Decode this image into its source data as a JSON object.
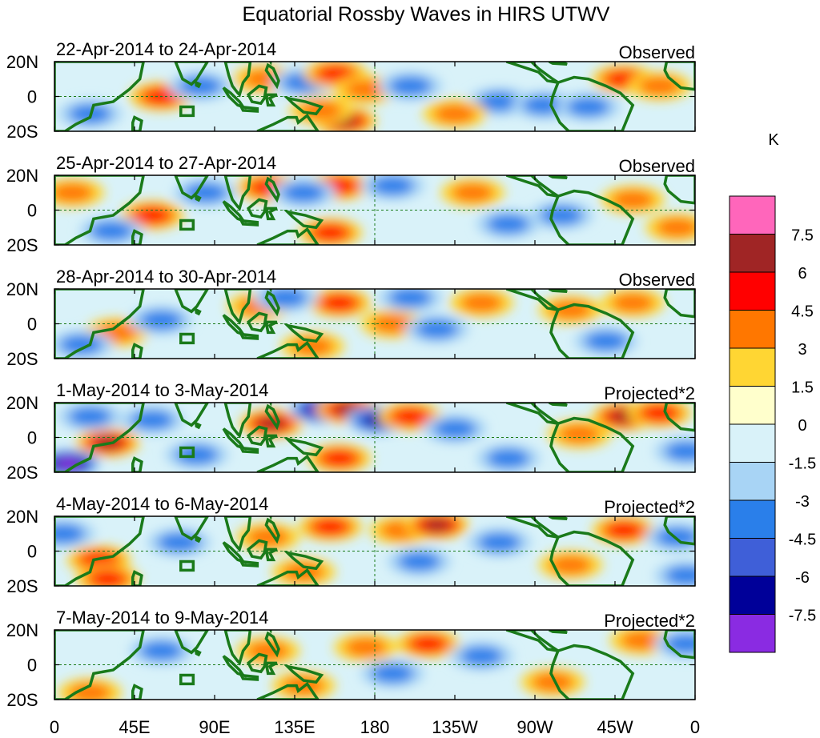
{
  "chart_data": {
    "type": "heatmap",
    "title": "Equatorial Rossby Waves in HIRS UTWV",
    "units": "K",
    "x_ticks": [
      "0",
      "45E",
      "90E",
      "135E",
      "180",
      "135W",
      "90W",
      "45W",
      "0"
    ],
    "y_ticks": [
      "20N",
      "0",
      "20S"
    ],
    "ylim": [
      -20,
      20
    ],
    "xlim": [
      0,
      360
    ],
    "colorbar": {
      "label": "K",
      "levels": [
        "7.5",
        "6",
        "4.5",
        "3",
        "1.5",
        "0",
        "-1.5",
        "-3",
        "-4.5",
        "-6",
        "-7.5"
      ],
      "colors": [
        "#ff66bb",
        "#a02525",
        "#ff0000",
        "#ff7700",
        "#ffd633",
        "#ffffcc",
        "#d9f2f9",
        "#a8d4f5",
        "#2a7fea",
        "#3f5fd8",
        "#000099",
        "#8a2be2"
      ]
    },
    "panels": [
      {
        "date_range": "22-Apr-2014 to 24-Apr-2014",
        "label": "Observed",
        "features": [
          {
            "lon": 60,
            "lat": 0,
            "value": 4.5
          },
          {
            "lon": 82,
            "lat": 6,
            "value": -2
          },
          {
            "lon": 118,
            "lat": 10,
            "value": 2
          },
          {
            "lon": 140,
            "lat": 8,
            "value": -2
          },
          {
            "lon": 158,
            "lat": 13,
            "value": 4
          },
          {
            "lon": 175,
            "lat": 4,
            "value": 2
          },
          {
            "lon": 163,
            "lat": -14,
            "value": 5
          },
          {
            "lon": 150,
            "lat": -8,
            "value": 2
          },
          {
            "lon": 200,
            "lat": 6,
            "value": -2
          },
          {
            "lon": 250,
            "lat": -3,
            "value": -2
          },
          {
            "lon": 275,
            "lat": -5,
            "value": -3
          },
          {
            "lon": 300,
            "lat": -6,
            "value": -2
          },
          {
            "lon": 320,
            "lat": 10,
            "value": 4
          },
          {
            "lon": 340,
            "lat": 6,
            "value": 2
          },
          {
            "lon": 20,
            "lat": -10,
            "value": -2
          },
          {
            "lon": 225,
            "lat": -10,
            "value": 2
          }
        ]
      },
      {
        "date_range": "25-Apr-2014 to 27-Apr-2014",
        "label": "Observed",
        "features": [
          {
            "lon": 55,
            "lat": -3,
            "value": 4
          },
          {
            "lon": 32,
            "lat": -12,
            "value": -3
          },
          {
            "lon": 85,
            "lat": 10,
            "value": -2
          },
          {
            "lon": 120,
            "lat": 13,
            "value": 3.5
          },
          {
            "lon": 160,
            "lat": 14,
            "value": 3.5
          },
          {
            "lon": 140,
            "lat": 10,
            "value": -2
          },
          {
            "lon": 155,
            "lat": -13,
            "value": 4.5
          },
          {
            "lon": 190,
            "lat": 14,
            "value": -2
          },
          {
            "lon": 235,
            "lat": 10,
            "value": 2
          },
          {
            "lon": 255,
            "lat": -8,
            "value": -2
          },
          {
            "lon": 285,
            "lat": -3,
            "value": -2
          },
          {
            "lon": 325,
            "lat": 6,
            "value": 2.5
          },
          {
            "lon": 350,
            "lat": -10,
            "value": 2
          },
          {
            "lon": 10,
            "lat": 10,
            "value": 2
          }
        ]
      },
      {
        "date_range": "28-Apr-2014 to 30-Apr-2014",
        "label": "Observed",
        "features": [
          {
            "lon": 35,
            "lat": -5,
            "value": 3
          },
          {
            "lon": 60,
            "lat": 2,
            "value": -2
          },
          {
            "lon": 115,
            "lat": 10,
            "value": 3
          },
          {
            "lon": 160,
            "lat": 12,
            "value": 4
          },
          {
            "lon": 145,
            "lat": -13,
            "value": 3
          },
          {
            "lon": 130,
            "lat": 15,
            "value": -3
          },
          {
            "lon": 190,
            "lat": 0,
            "value": 2
          },
          {
            "lon": 215,
            "lat": -3,
            "value": -2
          },
          {
            "lon": 200,
            "lat": 15,
            "value": -2
          },
          {
            "lon": 240,
            "lat": 12,
            "value": 2
          },
          {
            "lon": 290,
            "lat": 8,
            "value": 2
          },
          {
            "lon": 325,
            "lat": 12,
            "value": 3
          },
          {
            "lon": 310,
            "lat": -10,
            "value": -2
          },
          {
            "lon": 15,
            "lat": -12,
            "value": -2
          }
        ]
      },
      {
        "date_range": "1-May-2014 to 3-May-2014",
        "label": "Projected*2",
        "features": [
          {
            "lon": 30,
            "lat": -3,
            "value": 5
          },
          {
            "lon": 8,
            "lat": -15,
            "value": -7
          },
          {
            "lon": 55,
            "lat": 10,
            "value": -3
          },
          {
            "lon": 80,
            "lat": -10,
            "value": -3
          },
          {
            "lon": 122,
            "lat": 8,
            "value": 5
          },
          {
            "lon": 150,
            "lat": 16,
            "value": -7.5
          },
          {
            "lon": 165,
            "lat": 16,
            "value": 6
          },
          {
            "lon": 182,
            "lat": 10,
            "value": -6
          },
          {
            "lon": 200,
            "lat": 12,
            "value": 4.5
          },
          {
            "lon": 160,
            "lat": -12,
            "value": 3.5
          },
          {
            "lon": 225,
            "lat": 5,
            "value": -2
          },
          {
            "lon": 255,
            "lat": -12,
            "value": -3
          },
          {
            "lon": 320,
            "lat": 12,
            "value": 5
          },
          {
            "lon": 340,
            "lat": 14,
            "value": 4
          },
          {
            "lon": 295,
            "lat": 2,
            "value": 3
          },
          {
            "lon": 355,
            "lat": -8,
            "value": -3
          },
          {
            "lon": 20,
            "lat": 12,
            "value": -3
          }
        ]
      },
      {
        "date_range": "4-May-2014 to 6-May-2014",
        "label": "Projected*2",
        "features": [
          {
            "lon": 25,
            "lat": -5,
            "value": 3.5
          },
          {
            "lon": 30,
            "lat": -16,
            "value": 4
          },
          {
            "lon": 70,
            "lat": 5,
            "value": -2
          },
          {
            "lon": 120,
            "lat": 8,
            "value": 3
          },
          {
            "lon": 155,
            "lat": 14,
            "value": 4.5
          },
          {
            "lon": 140,
            "lat": -12,
            "value": 3
          },
          {
            "lon": 195,
            "lat": 12,
            "value": 3
          },
          {
            "lon": 215,
            "lat": 15,
            "value": 5
          },
          {
            "lon": 205,
            "lat": -6,
            "value": -2
          },
          {
            "lon": 250,
            "lat": 5,
            "value": -2
          },
          {
            "lon": 290,
            "lat": -8,
            "value": 2
          },
          {
            "lon": 320,
            "lat": 12,
            "value": 4.5
          },
          {
            "lon": 350,
            "lat": 8,
            "value": -2
          },
          {
            "lon": 355,
            "lat": -14,
            "value": -2
          },
          {
            "lon": 5,
            "lat": 10,
            "value": -2
          }
        ]
      },
      {
        "date_range": "7-May-2014 to 9-May-2014",
        "label": "Projected*2",
        "features": [
          {
            "lon": 20,
            "lat": -16,
            "value": 2.5
          },
          {
            "lon": 120,
            "lat": 8,
            "value": 2
          },
          {
            "lon": 140,
            "lat": -12,
            "value": 3
          },
          {
            "lon": 175,
            "lat": 10,
            "value": 2.5
          },
          {
            "lon": 210,
            "lat": 12,
            "value": 3.5
          },
          {
            "lon": 190,
            "lat": -5,
            "value": -2
          },
          {
            "lon": 240,
            "lat": 5,
            "value": -2
          },
          {
            "lon": 280,
            "lat": -10,
            "value": 2
          },
          {
            "lon": 330,
            "lat": 14,
            "value": 2
          },
          {
            "lon": 355,
            "lat": 12,
            "value": -2.5
          },
          {
            "lon": 60,
            "lat": 8,
            "value": -2
          }
        ]
      }
    ]
  }
}
